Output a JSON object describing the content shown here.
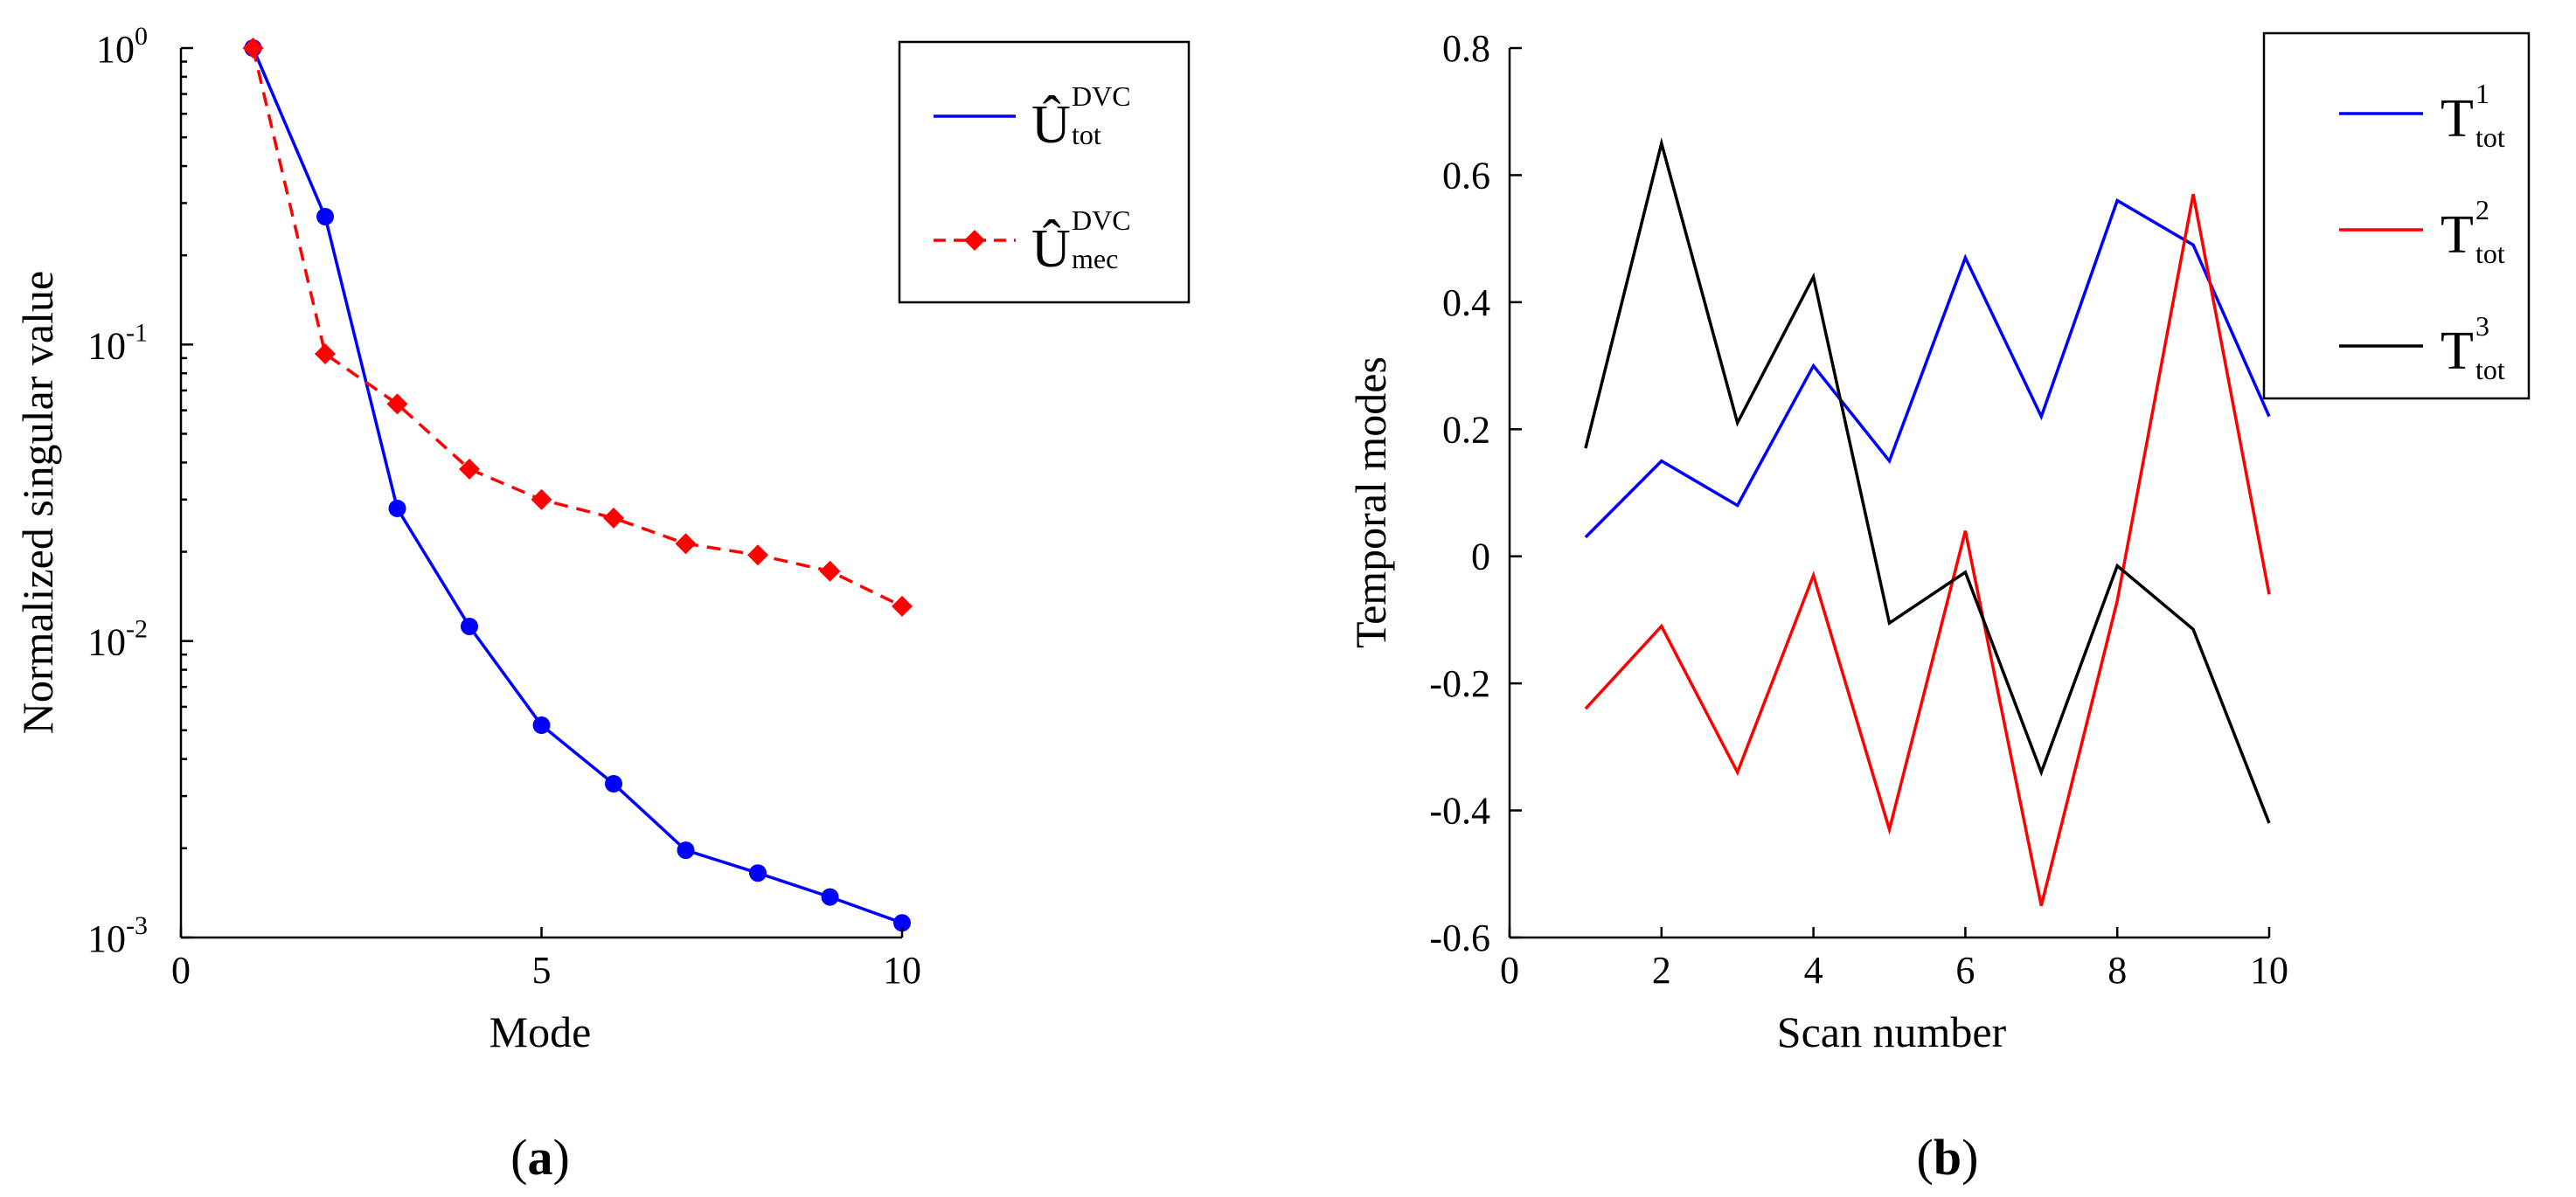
{
  "chart_data": [
    {
      "type": "line",
      "panel_label": "a",
      "xlabel": "Mode",
      "ylabel": "Normalized singular value",
      "yscale": "log",
      "xlim": [
        0,
        10
      ],
      "ylim": [
        0.001,
        1
      ],
      "xticks": [
        0,
        5,
        10
      ],
      "xtick_labels": [
        "0",
        "5",
        "10"
      ],
      "yticks": [
        0.001,
        0.01,
        0.1,
        1
      ],
      "ytick_base": [
        "10",
        "10",
        "10",
        "10"
      ],
      "ytick_exp": [
        "-3",
        "-2",
        "-1",
        "0"
      ],
      "legend_position": "top-right",
      "series": [
        {
          "name": "Û tot DVC",
          "legend_base": "Û",
          "legend_sup": "DVC",
          "legend_sub": "tot",
          "color": "#0000ff",
          "linestyle": "solid",
          "marker": "circle",
          "x": [
            1,
            2,
            3,
            4,
            5,
            6,
            7,
            8,
            9,
            10
          ],
          "values": [
            1.0,
            0.27,
            0.028,
            0.0112,
            0.0052,
            0.0033,
            0.00197,
            0.00165,
            0.00137,
            0.00112
          ]
        },
        {
          "name": "Û mec DVC",
          "legend_base": "Û",
          "legend_sup": "DVC",
          "legend_sub": "mec",
          "color": "#ff0000",
          "linestyle": "dashed",
          "marker": "diamond",
          "x": [
            1,
            2,
            3,
            4,
            5,
            6,
            7,
            8,
            9,
            10
          ],
          "values": [
            1.0,
            0.093,
            0.063,
            0.038,
            0.03,
            0.026,
            0.0213,
            0.0195,
            0.0172,
            0.0131
          ]
        }
      ]
    },
    {
      "type": "line",
      "panel_label": "b",
      "xlabel": "Scan number",
      "ylabel": "Temporal modes",
      "xlim": [
        0,
        10
      ],
      "ylim": [
        -0.6,
        0.8
      ],
      "xticks": [
        0,
        2,
        4,
        6,
        8,
        10
      ],
      "xtick_labels": [
        "0",
        "2",
        "4",
        "6",
        "8",
        "10"
      ],
      "yticks": [
        -0.6,
        -0.4,
        -0.2,
        0,
        0.2,
        0.4,
        0.6,
        0.8
      ],
      "ytick_labels": [
        "-0.6",
        "-0.4",
        "-0.2",
        "0",
        "0.2",
        "0.4",
        "0.6",
        "0.8"
      ],
      "legend_position": "top-right",
      "series": [
        {
          "name": "T tot 1",
          "legend_base": "T",
          "legend_sup": "1",
          "legend_sub": "tot",
          "color": "#0000ff",
          "linestyle": "solid",
          "x": [
            1,
            2,
            3,
            4,
            5,
            6,
            7,
            8,
            9,
            10
          ],
          "values": [
            0.03,
            0.15,
            0.08,
            0.3,
            0.15,
            0.47,
            0.22,
            0.56,
            0.49,
            0.22
          ]
        },
        {
          "name": "T tot 2",
          "legend_base": "T",
          "legend_sup": "2",
          "legend_sub": "tot",
          "color": "#ff0000",
          "linestyle": "solid",
          "x": [
            1,
            2,
            3,
            4,
            5,
            6,
            7,
            8,
            9,
            10
          ],
          "values": [
            -0.24,
            -0.11,
            -0.34,
            -0.03,
            -0.43,
            0.04,
            -0.55,
            -0.07,
            0.57,
            -0.06
          ]
        },
        {
          "name": "T tot 3",
          "legend_base": "T",
          "legend_sup": "3",
          "legend_sub": "tot",
          "color": "#000000",
          "linestyle": "solid",
          "x": [
            1,
            2,
            3,
            4,
            5,
            6,
            7,
            8,
            9,
            10
          ],
          "values": [
            0.17,
            0.65,
            0.21,
            0.44,
            -0.105,
            -0.025,
            -0.34,
            -0.015,
            -0.115,
            -0.42
          ]
        }
      ]
    }
  ]
}
